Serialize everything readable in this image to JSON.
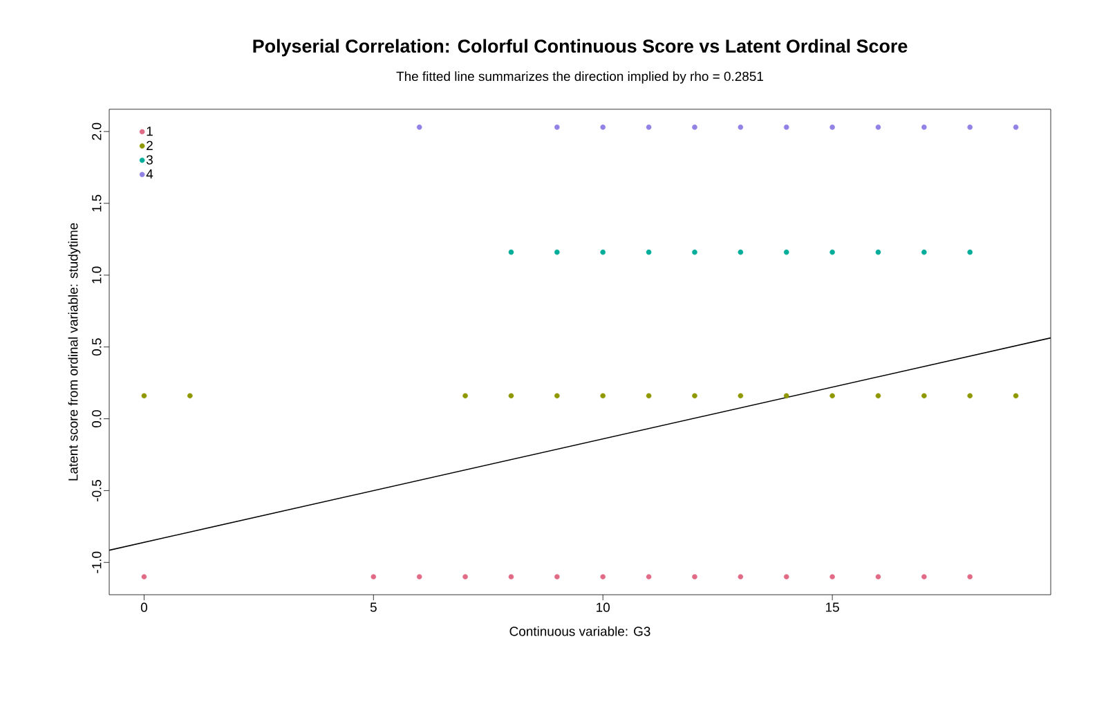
{
  "chart_data": {
    "type": "scatter",
    "title": "Polyserial Correlation: Colorful Continuous Score vs Latent Ordinal Score",
    "subtitle": "The fitted line summarizes the direction implied by rho = 0.2851",
    "xlabel": "Continuous variable: G3",
    "ylabel": "Latent score from ordinal variable: studytime",
    "xlim": [
      -0.76,
      19.76
    ],
    "ylim": [
      -1.225,
      2.155
    ],
    "xticks": [
      0,
      5,
      10,
      15
    ],
    "yticks": [
      {
        "value": -1,
        "label": "-1.0"
      },
      {
        "value": -0.5,
        "label": "-0.5"
      },
      {
        "value": 0,
        "label": "0.0"
      },
      {
        "value": 0.5,
        "label": "0.5"
      },
      {
        "value": 1,
        "label": "1.0"
      },
      {
        "value": 1.5,
        "label": "1.5"
      },
      {
        "value": 2,
        "label": "2.0"
      }
    ],
    "grid": false,
    "legend": "top left",
    "marker": "circle",
    "series": [
      {
        "name": "1",
        "color": "#E16A86",
        "x": [
          0,
          5,
          6,
          7,
          8,
          9,
          10,
          11,
          12,
          13,
          14,
          15,
          16,
          17,
          18
        ],
        "values": [
          -1.1,
          -1.1,
          -1.1,
          -1.1,
          -1.1,
          -1.1,
          -1.1,
          -1.1,
          -1.1,
          -1.1,
          -1.1,
          -1.1,
          -1.1,
          -1.1,
          -1.1
        ]
      },
      {
        "name": "2",
        "color": "#909800",
        "x": [
          0,
          1,
          7,
          8,
          9,
          10,
          11,
          12,
          13,
          14,
          15,
          16,
          17,
          18,
          19
        ],
        "values": [
          0.16,
          0.16,
          0.16,
          0.16,
          0.16,
          0.16,
          0.16,
          0.16,
          0.16,
          0.16,
          0.16,
          0.16,
          0.16,
          0.16,
          0.16
        ]
      },
      {
        "name": "3",
        "color": "#00AD9A",
        "x": [
          8,
          9,
          10,
          11,
          12,
          13,
          14,
          15,
          16,
          17,
          18
        ],
        "values": [
          1.16,
          1.16,
          1.16,
          1.16,
          1.16,
          1.16,
          1.16,
          1.16,
          1.16,
          1.16,
          1.16
        ]
      },
      {
        "name": "4",
        "color": "#9183E6",
        "x": [
          6,
          9,
          10,
          11,
          12,
          13,
          14,
          15,
          16,
          17,
          18,
          19
        ],
        "values": [
          2.03,
          2.03,
          2.03,
          2.03,
          2.03,
          2.03,
          2.03,
          2.03,
          2.03,
          2.03,
          2.03,
          2.03
        ]
      },
      {
        "type": "line",
        "color": "#000000",
        "marker": "none",
        "x": [
          -0.76,
          19.76
        ],
        "values": [
          -0.915,
          0.563
        ]
      }
    ]
  }
}
